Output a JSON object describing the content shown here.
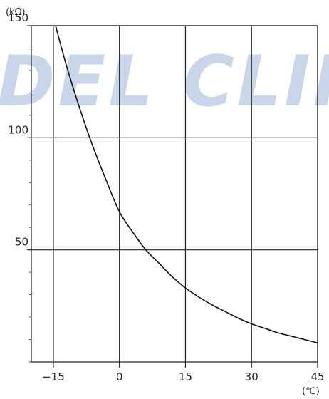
{
  "watermark": {
    "text": "DEL CLIMA",
    "color": "#c9d6ea"
  },
  "colors": {
    "grid": "#222222",
    "curve": "#111111",
    "background": "#ffffff"
  },
  "chart_data": {
    "type": "line",
    "title": "",
    "xlabel": "",
    "ylabel": "",
    "x_unit": "(℃)",
    "y_unit": "(kΩ)",
    "xlim": [
      -20,
      45
    ],
    "ylim": [
      0,
      150
    ],
    "x_ticks": [
      -15,
      0,
      15,
      30,
      45
    ],
    "x_tick_labels": [
      "−15",
      "0",
      "15",
      "30",
      "45"
    ],
    "y_ticks": [
      50,
      100,
      150
    ],
    "y_tick_labels": [
      "50",
      "100",
      "150"
    ],
    "grid": true,
    "series": [
      {
        "x": [
          -14.5,
          -12,
          -9,
          -6,
          -3,
          0,
          3,
          6,
          9,
          12,
          15,
          18,
          21,
          24,
          27,
          30,
          33,
          36,
          39,
          42,
          45
        ],
        "y": [
          150,
          132,
          113,
          96,
          81,
          67,
          58,
          50,
          44,
          38,
          33,
          29,
          25.5,
          22.5,
          19.5,
          17,
          15,
          13,
          11.5,
          10,
          8.5
        ]
      }
    ]
  }
}
